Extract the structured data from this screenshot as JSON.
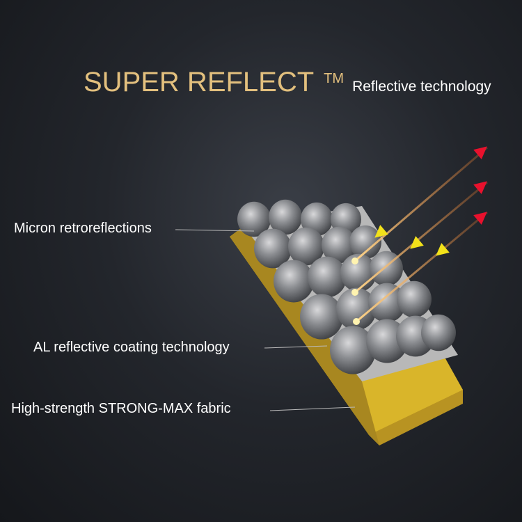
{
  "header": {
    "title": "SUPER REFLECT",
    "trademark": "TM",
    "subtitle": "Reflective technology"
  },
  "labels": {
    "micron": "Micron retroreflections",
    "coating": "AL reflective coating technology",
    "fabric": "High-strength STRONG-MAX fabric"
  },
  "colors": {
    "title": "#e3c07e",
    "fabric": "#d9b52a",
    "bead": "#8a8c90",
    "incoming_arrow": "#e8112d",
    "reflected_arrow": "#f3e21a"
  }
}
